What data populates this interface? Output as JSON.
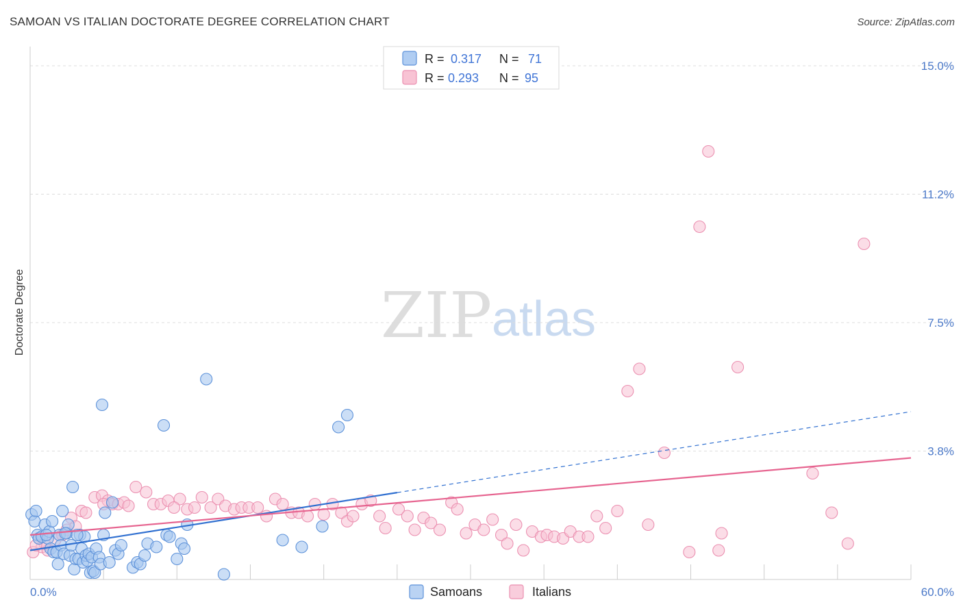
{
  "header": {
    "title": "SAMOAN VS ITALIAN DOCTORATE DEGREE CORRELATION CHART",
    "source": "Source: ZipAtlas.com"
  },
  "watermark": {
    "zip": "ZIP",
    "atlas": "atlas"
  },
  "legend": {
    "rows": [
      {
        "r_label": "R =",
        "r_value": "0.317",
        "n_label": "N =",
        "n_value": "71",
        "color": "#8fb8ec"
      },
      {
        "r_label": "R =",
        "r_value": "0.293",
        "n_label": "N =",
        "n_value": "95",
        "color": "#f5a9c2"
      }
    ]
  },
  "colors": {
    "samoans_fill": "#a9c8f0",
    "samoans_stroke": "#5c91d9",
    "samoans_line": "#2f6fd0",
    "italians_fill": "#f7c1d3",
    "italians_stroke": "#eb8fb0",
    "italians_line": "#e6638f",
    "grid": "#dcdcdc",
    "axis_text": "#4a78c8"
  },
  "chart_data": {
    "type": "scatter",
    "title": "SAMOAN VS ITALIAN DOCTORATE DEGREE CORRELATION CHART",
    "xlabel": "",
    "ylabel": "Doctorate Degree",
    "xlim": [
      0,
      60
    ],
    "ylim": [
      0,
      15
    ],
    "x_tick_labels": [
      "0.0%",
      "60.0%"
    ],
    "y_ticks": [
      {
        "value": 15.0,
        "label": "15.0%"
      },
      {
        "value": 11.25,
        "label": "11.2%"
      },
      {
        "value": 7.5,
        "label": "7.5%"
      },
      {
        "value": 3.75,
        "label": "3.8%"
      }
    ],
    "legend_position": "top-center",
    "series": [
      {
        "name": "Samoans",
        "r": 0.317,
        "n": 71,
        "trend": {
          "x_start": 0,
          "y_start": 0.85,
          "x_solid_end": 25,
          "x_dash_end": 60,
          "y_dash_end": 4.9
        },
        "points": [
          [
            0.1,
            1.9
          ],
          [
            0.3,
            1.7
          ],
          [
            0.5,
            1.3
          ],
          [
            0.6,
            1.2
          ],
          [
            0.8,
            1.25
          ],
          [
            1.0,
            1.6
          ],
          [
            1.2,
            1.2
          ],
          [
            1.3,
            1.4
          ],
          [
            1.4,
            0.9
          ],
          [
            1.5,
            1.7
          ],
          [
            1.6,
            0.8
          ],
          [
            1.8,
            0.8
          ],
          [
            1.9,
            0.45
          ],
          [
            2.0,
            1.3
          ],
          [
            2.1,
            1.0
          ],
          [
            2.2,
            2.0
          ],
          [
            2.3,
            0.75
          ],
          [
            2.5,
            1.35
          ],
          [
            2.6,
            1.6
          ],
          [
            2.7,
            0.7
          ],
          [
            2.8,
            1.0
          ],
          [
            2.9,
            2.7
          ],
          [
            3.0,
            0.3
          ],
          [
            3.1,
            0.6
          ],
          [
            3.3,
            0.6
          ],
          [
            3.4,
            1.3
          ],
          [
            3.5,
            0.9
          ],
          [
            3.6,
            0.5
          ],
          [
            3.7,
            1.25
          ],
          [
            3.8,
            0.7
          ],
          [
            3.9,
            0.55
          ],
          [
            4.0,
            0.75
          ],
          [
            4.1,
            0.2
          ],
          [
            4.2,
            0.65
          ],
          [
            4.3,
            0.25
          ],
          [
            4.4,
            0.2
          ],
          [
            4.5,
            0.9
          ],
          [
            4.7,
            0.65
          ],
          [
            4.8,
            0.45
          ],
          [
            4.9,
            5.1
          ],
          [
            5.0,
            1.3
          ],
          [
            5.1,
            1.95
          ],
          [
            5.4,
            0.5
          ],
          [
            5.6,
            2.25
          ],
          [
            5.8,
            0.85
          ],
          [
            6.0,
            0.75
          ],
          [
            6.2,
            1.0
          ],
          [
            7.0,
            0.35
          ],
          [
            7.3,
            0.5
          ],
          [
            7.5,
            0.45
          ],
          [
            7.8,
            0.7
          ],
          [
            8.0,
            1.05
          ],
          [
            8.6,
            0.95
          ],
          [
            9.1,
            4.5
          ],
          [
            9.3,
            1.3
          ],
          [
            9.5,
            1.25
          ],
          [
            10.0,
            0.6
          ],
          [
            10.3,
            1.05
          ],
          [
            10.5,
            0.9
          ],
          [
            10.7,
            1.6
          ],
          [
            12.0,
            5.85
          ],
          [
            13.2,
            0.15
          ],
          [
            17.2,
            1.15
          ],
          [
            18.5,
            0.95
          ],
          [
            19.9,
            1.55
          ],
          [
            21.0,
            4.45
          ],
          [
            21.6,
            4.8
          ],
          [
            0.4,
            2.0
          ],
          [
            1.1,
            1.3
          ],
          [
            3.2,
            1.3
          ],
          [
            2.4,
            1.35
          ]
        ]
      },
      {
        "name": "Italians",
        "r": 0.293,
        "n": 95,
        "trend": {
          "x_start": 0,
          "y_start": 1.3,
          "x_end": 60,
          "y_end": 3.55
        },
        "points": [
          [
            0.2,
            0.8
          ],
          [
            0.6,
            1.2
          ],
          [
            0.8,
            0.95
          ],
          [
            1.2,
            0.85
          ],
          [
            1.7,
            1.15
          ],
          [
            2.2,
            1.3
          ],
          [
            2.8,
            1.8
          ],
          [
            3.5,
            2.0
          ],
          [
            3.8,
            1.95
          ],
          [
            4.4,
            2.4
          ],
          [
            4.9,
            2.45
          ],
          [
            5.3,
            2.3
          ],
          [
            5.6,
            2.2
          ],
          [
            6.0,
            2.2
          ],
          [
            6.4,
            2.25
          ],
          [
            7.2,
            2.7
          ],
          [
            7.9,
            2.55
          ],
          [
            8.4,
            2.2
          ],
          [
            8.9,
            2.2
          ],
          [
            9.4,
            2.3
          ],
          [
            10.2,
            2.35
          ],
          [
            10.7,
            2.05
          ],
          [
            11.2,
            2.1
          ],
          [
            11.7,
            2.4
          ],
          [
            12.3,
            2.1
          ],
          [
            12.8,
            2.35
          ],
          [
            13.3,
            2.15
          ],
          [
            13.9,
            2.05
          ],
          [
            14.4,
            2.1
          ],
          [
            14.9,
            2.1
          ],
          [
            15.5,
            2.1
          ],
          [
            16.1,
            1.85
          ],
          [
            16.7,
            2.35
          ],
          [
            17.2,
            2.2
          ],
          [
            17.8,
            1.95
          ],
          [
            18.3,
            1.95
          ],
          [
            18.9,
            1.85
          ],
          [
            19.4,
            2.2
          ],
          [
            20.0,
            1.9
          ],
          [
            20.6,
            2.2
          ],
          [
            21.2,
            1.95
          ],
          [
            21.6,
            1.7
          ],
          [
            22.0,
            1.85
          ],
          [
            22.6,
            2.2
          ],
          [
            23.2,
            2.3
          ],
          [
            23.8,
            1.85
          ],
          [
            24.2,
            1.5
          ],
          [
            25.1,
            2.05
          ],
          [
            25.7,
            1.85
          ],
          [
            26.2,
            1.45
          ],
          [
            26.8,
            1.8
          ],
          [
            27.3,
            1.65
          ],
          [
            27.9,
            1.45
          ],
          [
            28.7,
            2.25
          ],
          [
            29.1,
            2.05
          ],
          [
            29.7,
            1.35
          ],
          [
            30.3,
            1.6
          ],
          [
            30.9,
            1.45
          ],
          [
            31.5,
            1.75
          ],
          [
            32.1,
            1.3
          ],
          [
            32.5,
            1.05
          ],
          [
            33.1,
            1.6
          ],
          [
            33.6,
            0.85
          ],
          [
            34.2,
            1.4
          ],
          [
            34.8,
            1.25
          ],
          [
            35.2,
            1.3
          ],
          [
            35.7,
            1.25
          ],
          [
            36.3,
            1.2
          ],
          [
            36.8,
            1.4
          ],
          [
            37.4,
            1.25
          ],
          [
            38.0,
            1.25
          ],
          [
            38.6,
            1.85
          ],
          [
            39.2,
            1.5
          ],
          [
            40.0,
            2.0
          ],
          [
            40.7,
            5.5
          ],
          [
            41.5,
            6.15
          ],
          [
            42.1,
            1.6
          ],
          [
            43.2,
            3.7
          ],
          [
            44.9,
            0.8
          ],
          [
            45.6,
            10.3
          ],
          [
            46.2,
            12.5
          ],
          [
            46.9,
            0.85
          ],
          [
            47.1,
            1.35
          ],
          [
            48.2,
            6.2
          ],
          [
            53.3,
            3.1
          ],
          [
            54.6,
            1.95
          ],
          [
            55.7,
            1.05
          ],
          [
            56.8,
            9.8
          ],
          [
            1.0,
            1.05
          ],
          [
            2.5,
            1.45
          ],
          [
            3.1,
            1.55
          ],
          [
            5.0,
            2.2
          ],
          [
            6.7,
            2.15
          ],
          [
            9.8,
            2.1
          ],
          [
            0.4,
            1.0
          ]
        ]
      }
    ]
  },
  "bottom_legend": {
    "items": [
      {
        "label": "Samoans",
        "color": "#a9c8f0"
      },
      {
        "label": "Italians",
        "color": "#f7c1d3"
      }
    ]
  }
}
